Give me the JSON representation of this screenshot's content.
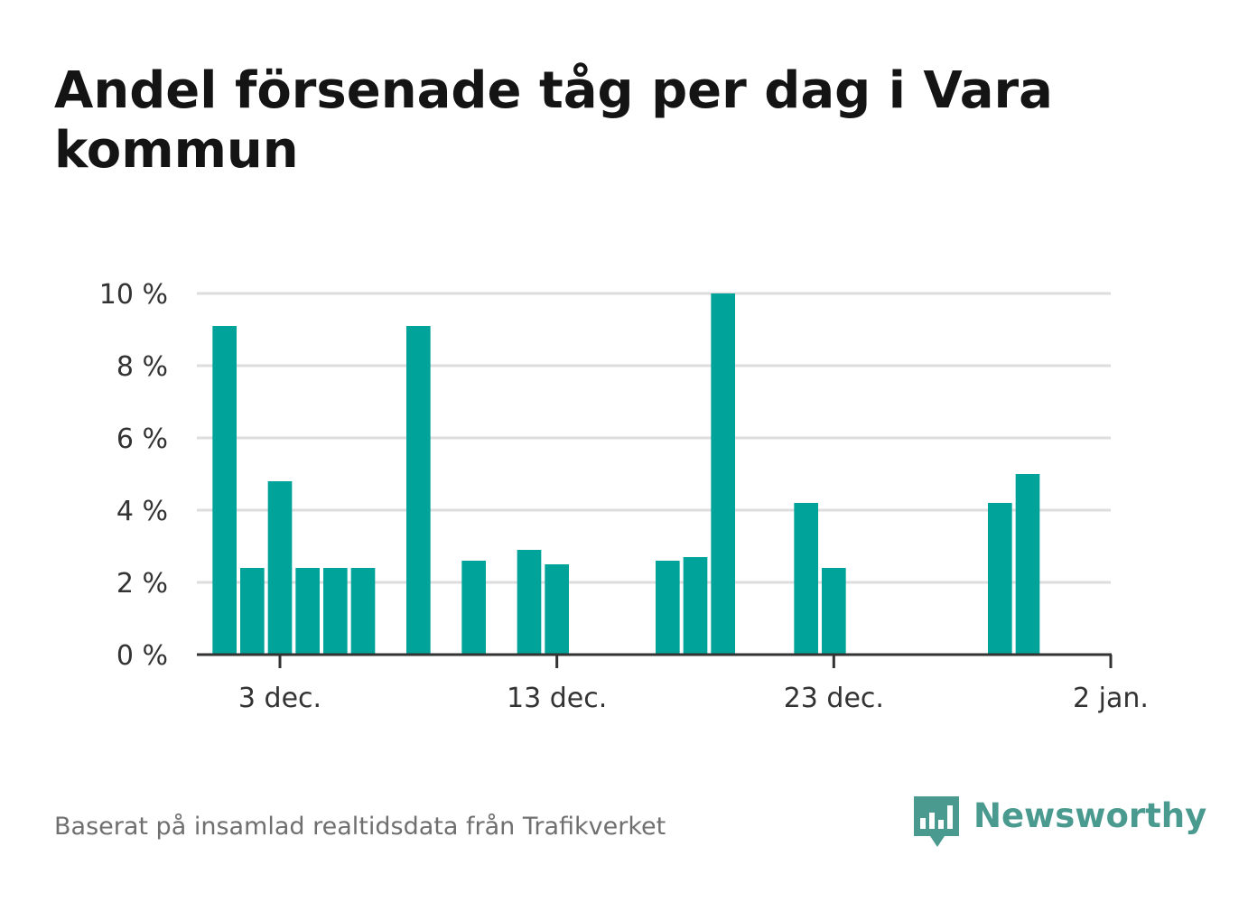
{
  "title": "Andel försenade tåg per dag i Vara kommun",
  "source": "Baserat på insamlad realtidsdata från Trafikverket",
  "brand": {
    "name": "Newsworthy",
    "color": "#4a9a90"
  },
  "colors": {
    "bar": "#00a39a",
    "grid": "#dddddd",
    "axis": "#333333"
  },
  "chart_data": {
    "type": "bar",
    "title": "Andel försenade tåg per dag i Vara kommun",
    "xlabel": "",
    "ylabel": "",
    "x_axis": {
      "start": "2024-11-30",
      "end": "2025-01-02",
      "ticks": [
        "3 dec.",
        "13 dec.",
        "23 dec.",
        "2 jan."
      ],
      "tick_dates": [
        "2024-12-03",
        "2024-12-13",
        "2024-12-23",
        "2025-01-02"
      ]
    },
    "y_axis": {
      "ylim": [
        0,
        10
      ],
      "ticks": [
        "0 %",
        "2 %",
        "4 %",
        "6 %",
        "8 %",
        "10 %"
      ],
      "tick_values": [
        0,
        2,
        4,
        6,
        8,
        10
      ]
    },
    "grid": true,
    "unit": "%",
    "bars": [
      {
        "date": "2024-12-01",
        "value": 9.1
      },
      {
        "date": "2024-12-02",
        "value": 2.4
      },
      {
        "date": "2024-12-03",
        "value": 4.8
      },
      {
        "date": "2024-12-04",
        "value": 2.4
      },
      {
        "date": "2024-12-05",
        "value": 2.4
      },
      {
        "date": "2024-12-06",
        "value": 2.4
      },
      {
        "date": "2024-12-08",
        "value": 9.1
      },
      {
        "date": "2024-12-10",
        "value": 2.6
      },
      {
        "date": "2024-12-12",
        "value": 2.9
      },
      {
        "date": "2024-12-13",
        "value": 2.5
      },
      {
        "date": "2024-12-17",
        "value": 2.6
      },
      {
        "date": "2024-12-18",
        "value": 2.7
      },
      {
        "date": "2024-12-19",
        "value": 10.0
      },
      {
        "date": "2024-12-22",
        "value": 4.2
      },
      {
        "date": "2024-12-23",
        "value": 2.4
      },
      {
        "date": "2024-12-29",
        "value": 4.2
      },
      {
        "date": "2024-12-30",
        "value": 5.0
      }
    ]
  }
}
